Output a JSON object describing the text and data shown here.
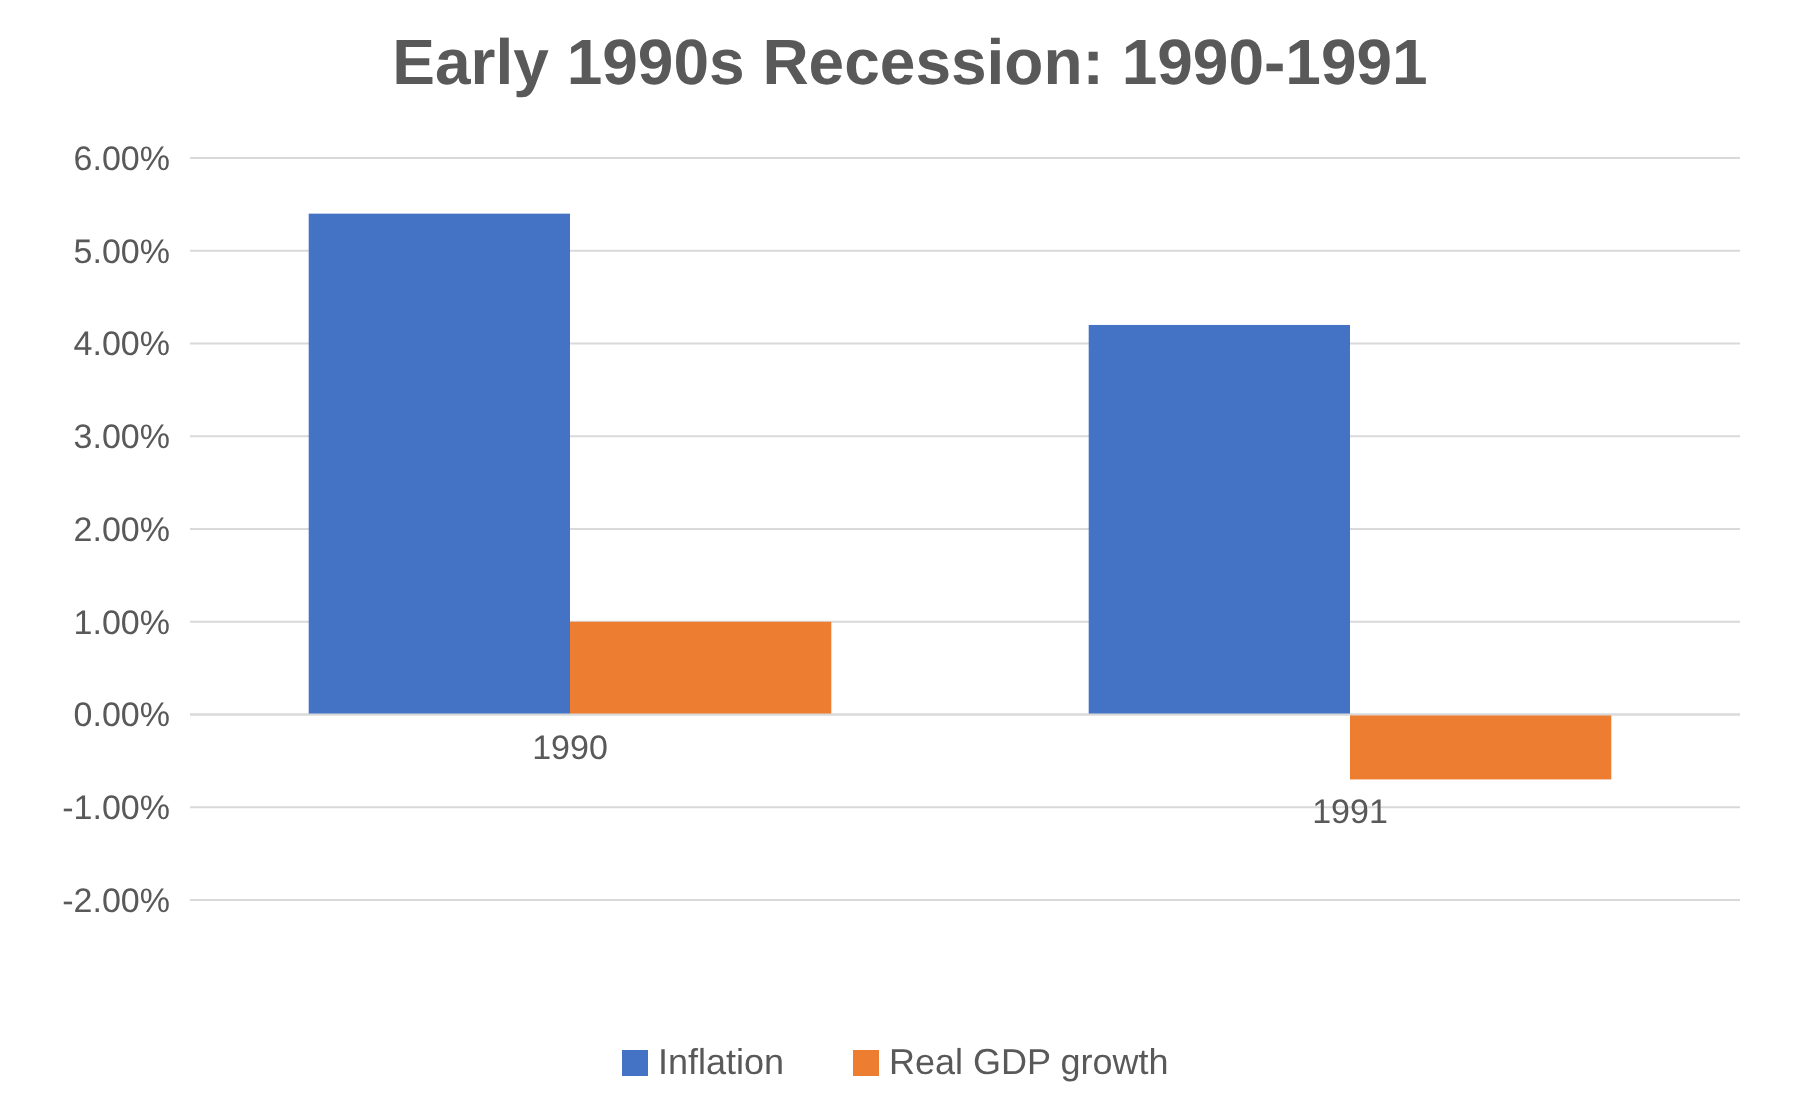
{
  "chart_data": {
    "type": "bar",
    "title": "Early 1990s Recession: 1990-1991",
    "categories": [
      "1990",
      "1991"
    ],
    "series": [
      {
        "name": "Inflation",
        "color": "#4472c4",
        "values": [
          5.4,
          4.2
        ]
      },
      {
        "name": "Real GDP growth",
        "color": "#ed7d31",
        "values": [
          1.0,
          -0.7
        ]
      }
    ],
    "ylim": [
      -2,
      6
    ],
    "yticks": [
      {
        "value": -2,
        "label": "-2.00%"
      },
      {
        "value": -1,
        "label": "-1.00%"
      },
      {
        "value": 0,
        "label": "0.00%"
      },
      {
        "value": 1,
        "label": "1.00%"
      },
      {
        "value": 2,
        "label": "2.00%"
      },
      {
        "value": 3,
        "label": "3.00%"
      },
      {
        "value": 4,
        "label": "4.00%"
      },
      {
        "value": 5,
        "label": "5.00%"
      },
      {
        "value": 6,
        "label": "6.00%"
      }
    ],
    "grid": "y",
    "legend": "bottom"
  }
}
